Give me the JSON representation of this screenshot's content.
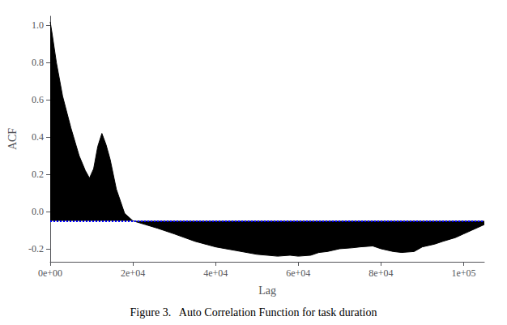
{
  "chart_data": {
    "type": "area",
    "title": "Figure 3.   Auto Correlation Function for task duration",
    "xlabel": "Lag",
    "ylabel": "ACF",
    "x": [
      0,
      500,
      1500,
      3000,
      5000,
      7000,
      8500,
      9500,
      10500,
      11500,
      12500,
      13500,
      14500,
      16000,
      18000,
      20000,
      23000,
      26000,
      30000,
      35000,
      40000,
      45000,
      50000,
      55000,
      58000,
      60000,
      63000,
      65000,
      67000,
      70000,
      73000,
      75000,
      78000,
      80000,
      83000,
      85000,
      88000,
      90000,
      93000,
      95000,
      98000,
      100000,
      102000,
      105000
    ],
    "values": [
      1.02,
      0.95,
      0.8,
      0.62,
      0.45,
      0.3,
      0.22,
      0.18,
      0.23,
      0.35,
      0.42,
      0.36,
      0.28,
      0.12,
      -0.01,
      -0.05,
      -0.07,
      -0.09,
      -0.12,
      -0.16,
      -0.19,
      -0.21,
      -0.23,
      -0.24,
      -0.235,
      -0.24,
      -0.235,
      -0.22,
      -0.215,
      -0.2,
      -0.195,
      -0.19,
      -0.185,
      -0.2,
      -0.215,
      -0.22,
      -0.215,
      -0.19,
      -0.175,
      -0.16,
      -0.14,
      -0.12,
      -0.1,
      -0.07
    ],
    "color": "#000000",
    "conf_y": -0.05,
    "conf_color": "#0000FF",
    "xlim": [
      0,
      105000
    ],
    "ylim": [
      -0.27,
      1.05
    ],
    "xticks": [
      {
        "value": 0,
        "label": "0e+00"
      },
      {
        "value": 20000,
        "label": "2e+04"
      },
      {
        "value": 40000,
        "label": "4e+04"
      },
      {
        "value": 60000,
        "label": "6e+04"
      },
      {
        "value": 80000,
        "label": "8e+04"
      },
      {
        "value": 100000,
        "label": "1e+05"
      }
    ],
    "yticks": [
      -0.2,
      {
        "value": 0.0,
        "label": "0.0"
      },
      0.2,
      0.4,
      0.6,
      0.8,
      {
        "value": 1.0,
        "label": "1.0"
      }
    ],
    "grid": false
  }
}
